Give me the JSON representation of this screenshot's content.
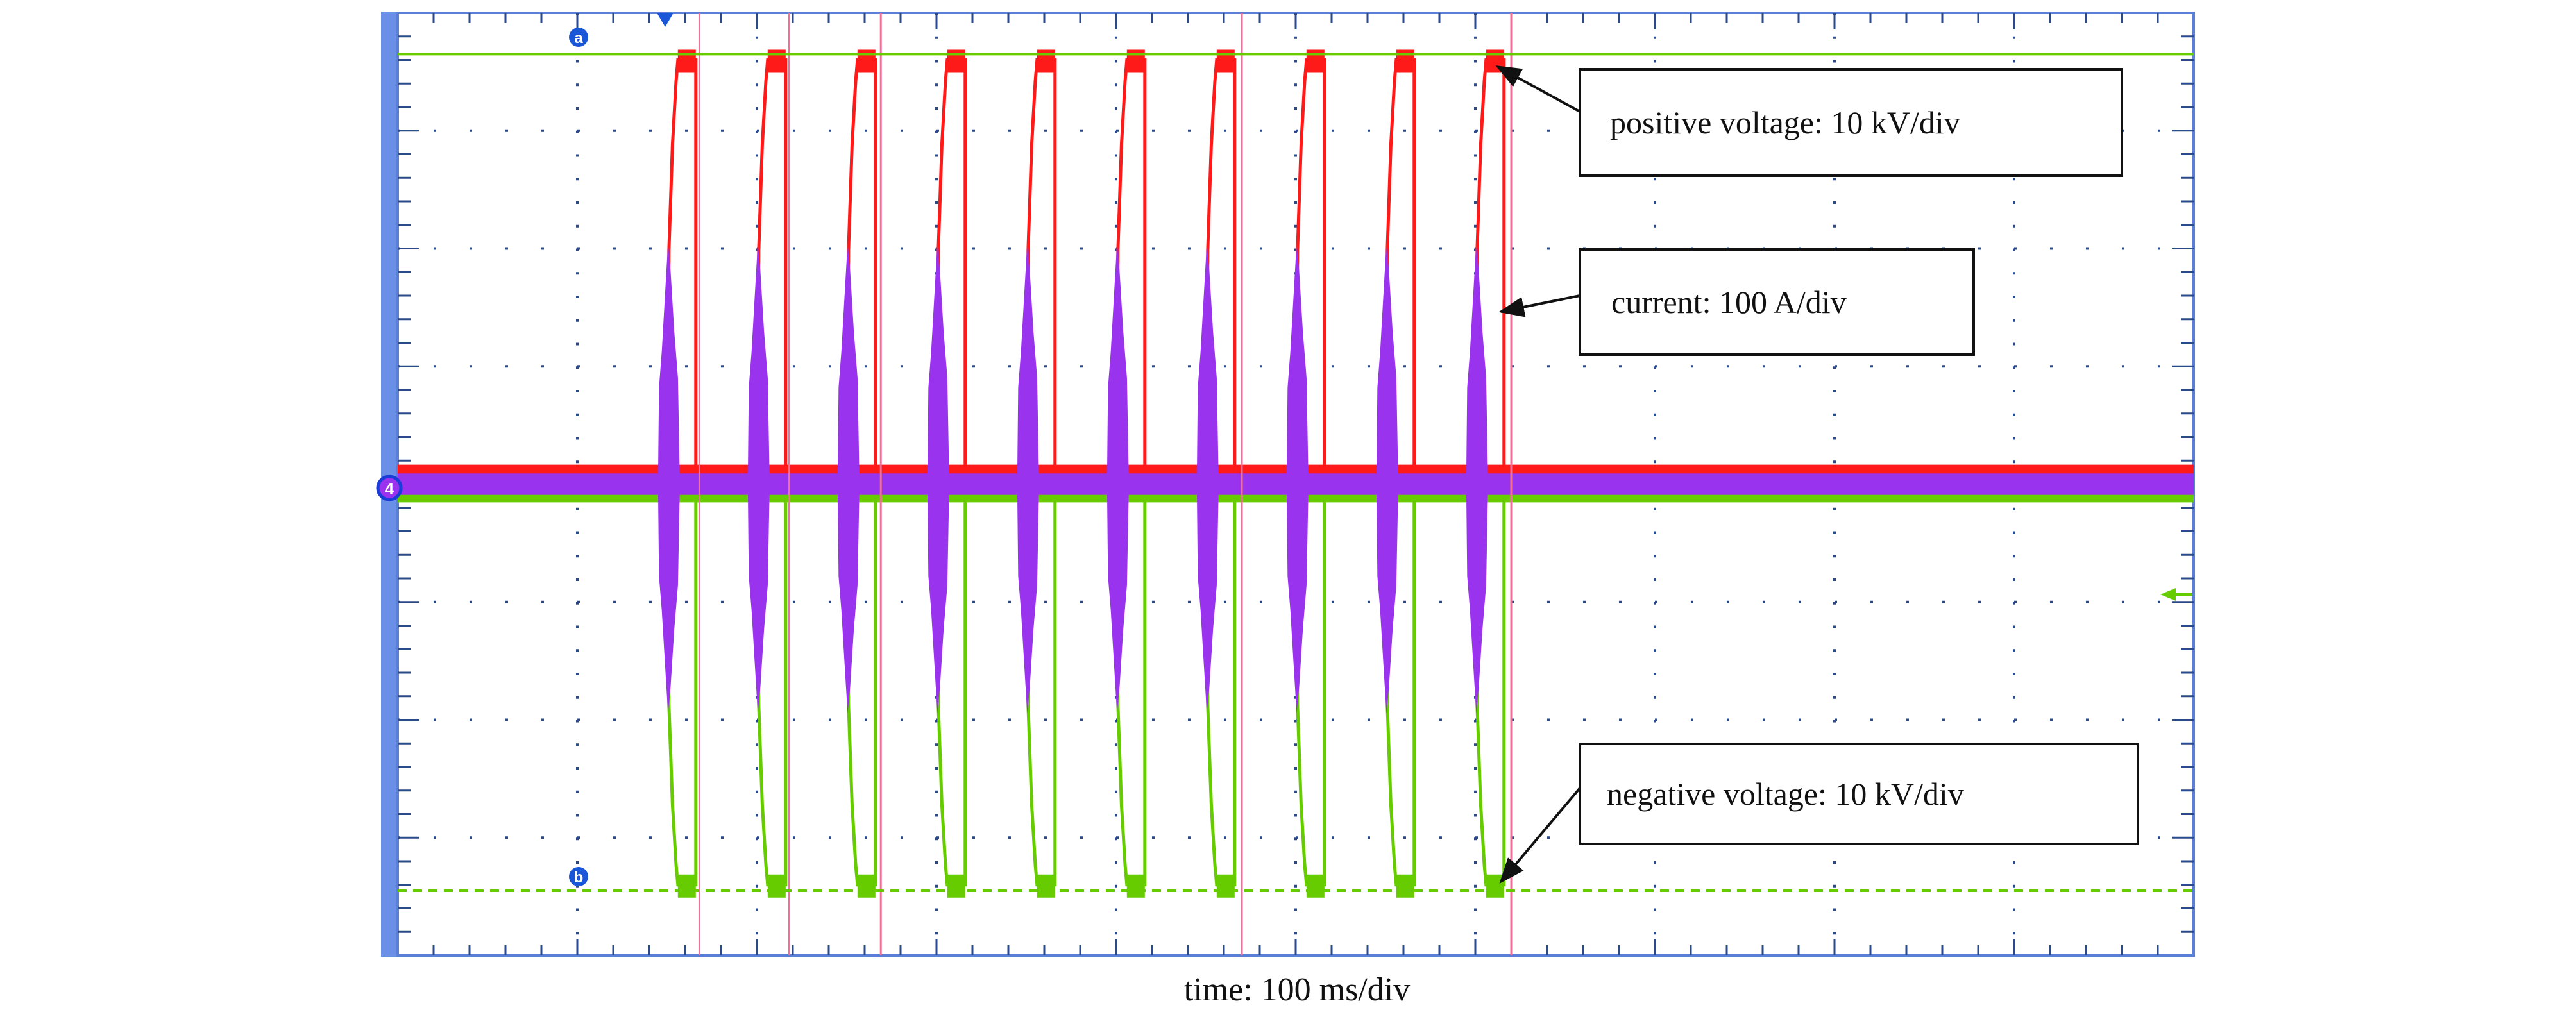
{
  "chart_data": {
    "type": "line",
    "title": "",
    "xlabel": "time: 100 ms/div",
    "ylabel": "",
    "x_divisions": 10,
    "y_divisions": 8,
    "x_unit": "ms",
    "xlim": [
      0,
      1000
    ],
    "grid": true,
    "legend": "none",
    "series": [
      {
        "name": "positive voltage: 10 kV/div",
        "color": "#ff1a1a",
        "baseline_kV": 1,
        "plateau_kV": 36
      },
      {
        "name": "current: 100 A/div",
        "color": "#9933ee",
        "peak_A": 205,
        "trough_A": -195
      },
      {
        "name": "negative voltage: 10 kV/div",
        "color": "#66cc00",
        "baseline_kV": -1,
        "plateau_kV": -34
      }
    ],
    "pulse_start_ms": [
      145,
      195,
      245,
      295,
      345,
      395,
      445,
      495,
      545,
      595
    ],
    "pulse_current_duration_ms": 12,
    "pulse_voltage_end_ms": 21,
    "cursors": {
      "a_kV": 36.5,
      "b_kV": -34.5
    },
    "cursor_labels": {
      "a": "a",
      "b": "b"
    },
    "channel_marker": "4",
    "vertical_markers_ms": [
      168,
      218,
      269,
      470,
      620
    ],
    "trigger_ms": 148,
    "annotations": [
      {
        "text": "positive voltage: 10 kV/div"
      },
      {
        "text": "current: 100 A/div"
      },
      {
        "text": "negative voltage: 10 kV/div"
      }
    ],
    "colors": {
      "frame": "#6a8fe6",
      "grid": "#2a4a8a",
      "marker_line": "#f07098",
      "cursor": "#66cc00"
    }
  }
}
